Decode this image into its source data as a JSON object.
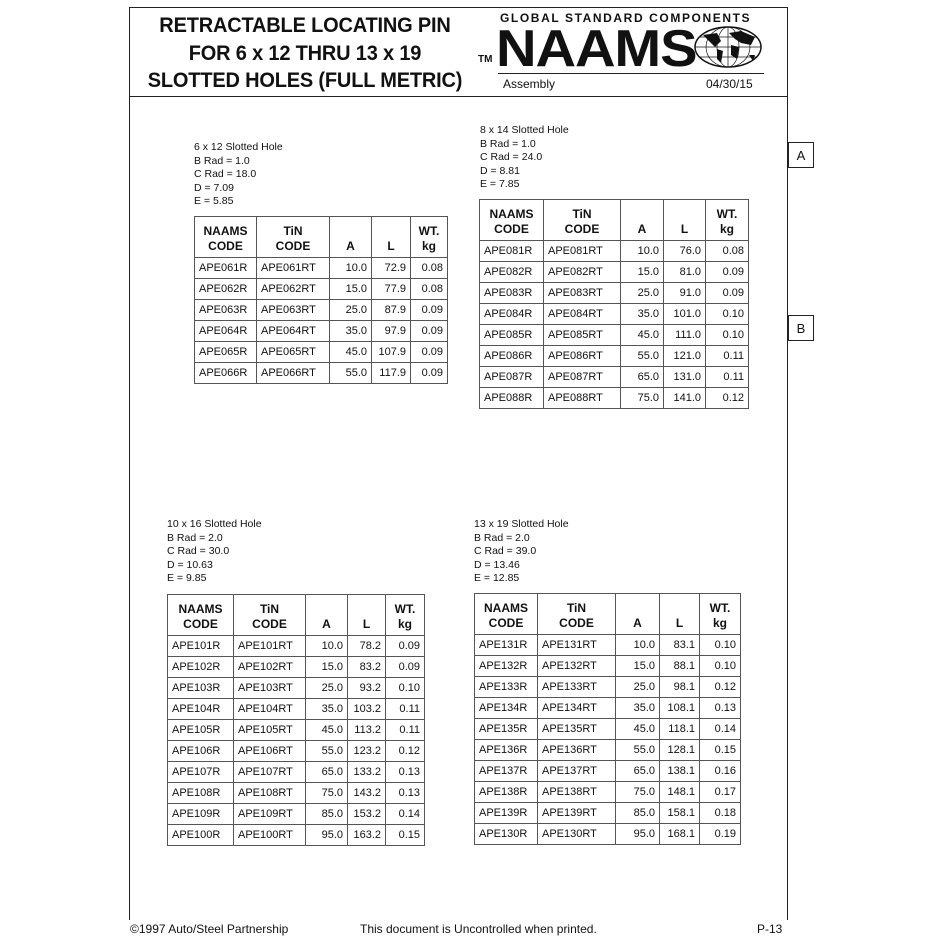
{
  "header": {
    "title_lines": [
      "RETRACTABLE LOCATING PIN",
      "FOR 6 x 12 THRU 13 x 19",
      "SLOTTED HOLES (FULL METRIC)"
    ],
    "tm": "TM",
    "tagline": "GLOBAL STANDARD COMPONENTS",
    "logo": "NAAMS",
    "section": "Assembly",
    "date": "04/30/15"
  },
  "side_tabs": [
    "A",
    "B"
  ],
  "columns": [
    "NAAMS\nCODE",
    "TiN\nCODE",
    "A",
    "L",
    "WT.\nkg"
  ],
  "tables": [
    {
      "spec": [
        "6 x 12 Slotted Hole",
        "B Rad = 1.0",
        "C Rad = 18.0",
        "D = 7.09",
        "E = 5.85"
      ],
      "rows": [
        [
          "APE061R",
          "APE061RT",
          "10.0",
          "72.9",
          "0.08"
        ],
        [
          "APE062R",
          "APE062RT",
          "15.0",
          "77.9",
          "0.08"
        ],
        [
          "APE063R",
          "APE063RT",
          "25.0",
          "87.9",
          "0.09"
        ],
        [
          "APE064R",
          "APE064RT",
          "35.0",
          "97.9",
          "0.09"
        ],
        [
          "APE065R",
          "APE065RT",
          "45.0",
          "107.9",
          "0.09"
        ],
        [
          "APE066R",
          "APE066RT",
          "55.0",
          "117.9",
          "0.09"
        ]
      ]
    },
    {
      "spec": [
        "8 x 14 Slotted Hole",
        "B Rad = 1.0",
        "C Rad = 24.0",
        "D = 8.81",
        "E = 7.85"
      ],
      "rows": [
        [
          "APE081R",
          "APE081RT",
          "10.0",
          "76.0",
          "0.08"
        ],
        [
          "APE082R",
          "APE082RT",
          "15.0",
          "81.0",
          "0.09"
        ],
        [
          "APE083R",
          "APE083RT",
          "25.0",
          "91.0",
          "0.09"
        ],
        [
          "APE084R",
          "APE084RT",
          "35.0",
          "101.0",
          "0.10"
        ],
        [
          "APE085R",
          "APE085RT",
          "45.0",
          "111.0",
          "0.10"
        ],
        [
          "APE086R",
          "APE086RT",
          "55.0",
          "121.0",
          "0.11"
        ],
        [
          "APE087R",
          "APE087RT",
          "65.0",
          "131.0",
          "0.11"
        ],
        [
          "APE088R",
          "APE088RT",
          "75.0",
          "141.0",
          "0.12"
        ]
      ]
    },
    {
      "spec": [
        "10 x 16 Slotted Hole",
        "B Rad = 2.0",
        "C Rad = 30.0",
        "D = 10.63",
        "E = 9.85"
      ],
      "rows": [
        [
          "APE101R",
          "APE101RT",
          "10.0",
          "78.2",
          "0.09"
        ],
        [
          "APE102R",
          "APE102RT",
          "15.0",
          "83.2",
          "0.09"
        ],
        [
          "APE103R",
          "APE103RT",
          "25.0",
          "93.2",
          "0.10"
        ],
        [
          "APE104R",
          "APE104RT",
          "35.0",
          "103.2",
          "0.11"
        ],
        [
          "APE105R",
          "APE105RT",
          "45.0",
          "113.2",
          "0.11"
        ],
        [
          "APE106R",
          "APE106RT",
          "55.0",
          "123.2",
          "0.12"
        ],
        [
          "APE107R",
          "APE107RT",
          "65.0",
          "133.2",
          "0.13"
        ],
        [
          "APE108R",
          "APE108RT",
          "75.0",
          "143.2",
          "0.13"
        ],
        [
          "APE109R",
          "APE109RT",
          "85.0",
          "153.2",
          "0.14"
        ],
        [
          "APE100R",
          "APE100RT",
          "95.0",
          "163.2",
          "0.15"
        ]
      ]
    },
    {
      "spec": [
        "13 x 19 Slotted Hole",
        "B Rad = 2.0",
        "C Rad = 39.0",
        "D = 13.46",
        "E = 12.85"
      ],
      "rows": [
        [
          "APE131R",
          "APE131RT",
          "10.0",
          "83.1",
          "0.10"
        ],
        [
          "APE132R",
          "APE132RT",
          "15.0",
          "88.1",
          "0.10"
        ],
        [
          "APE133R",
          "APE133RT",
          "25.0",
          "98.1",
          "0.12"
        ],
        [
          "APE134R",
          "APE134RT",
          "35.0",
          "108.1",
          "0.13"
        ],
        [
          "APE135R",
          "APE135RT",
          "45.0",
          "118.1",
          "0.14"
        ],
        [
          "APE136R",
          "APE136RT",
          "55.0",
          "128.1",
          "0.15"
        ],
        [
          "APE137R",
          "APE137RT",
          "65.0",
          "138.1",
          "0.16"
        ],
        [
          "APE138R",
          "APE138RT",
          "75.0",
          "148.1",
          "0.17"
        ],
        [
          "APE139R",
          "APE139RT",
          "85.0",
          "158.1",
          "0.18"
        ],
        [
          "APE130R",
          "APE130RT",
          "95.0",
          "168.1",
          "0.19"
        ]
      ]
    }
  ],
  "footer": {
    "copyright": "©1997 Auto/Steel Partnership",
    "notice": "This document is Uncontrolled when printed.",
    "page": "P-13"
  }
}
